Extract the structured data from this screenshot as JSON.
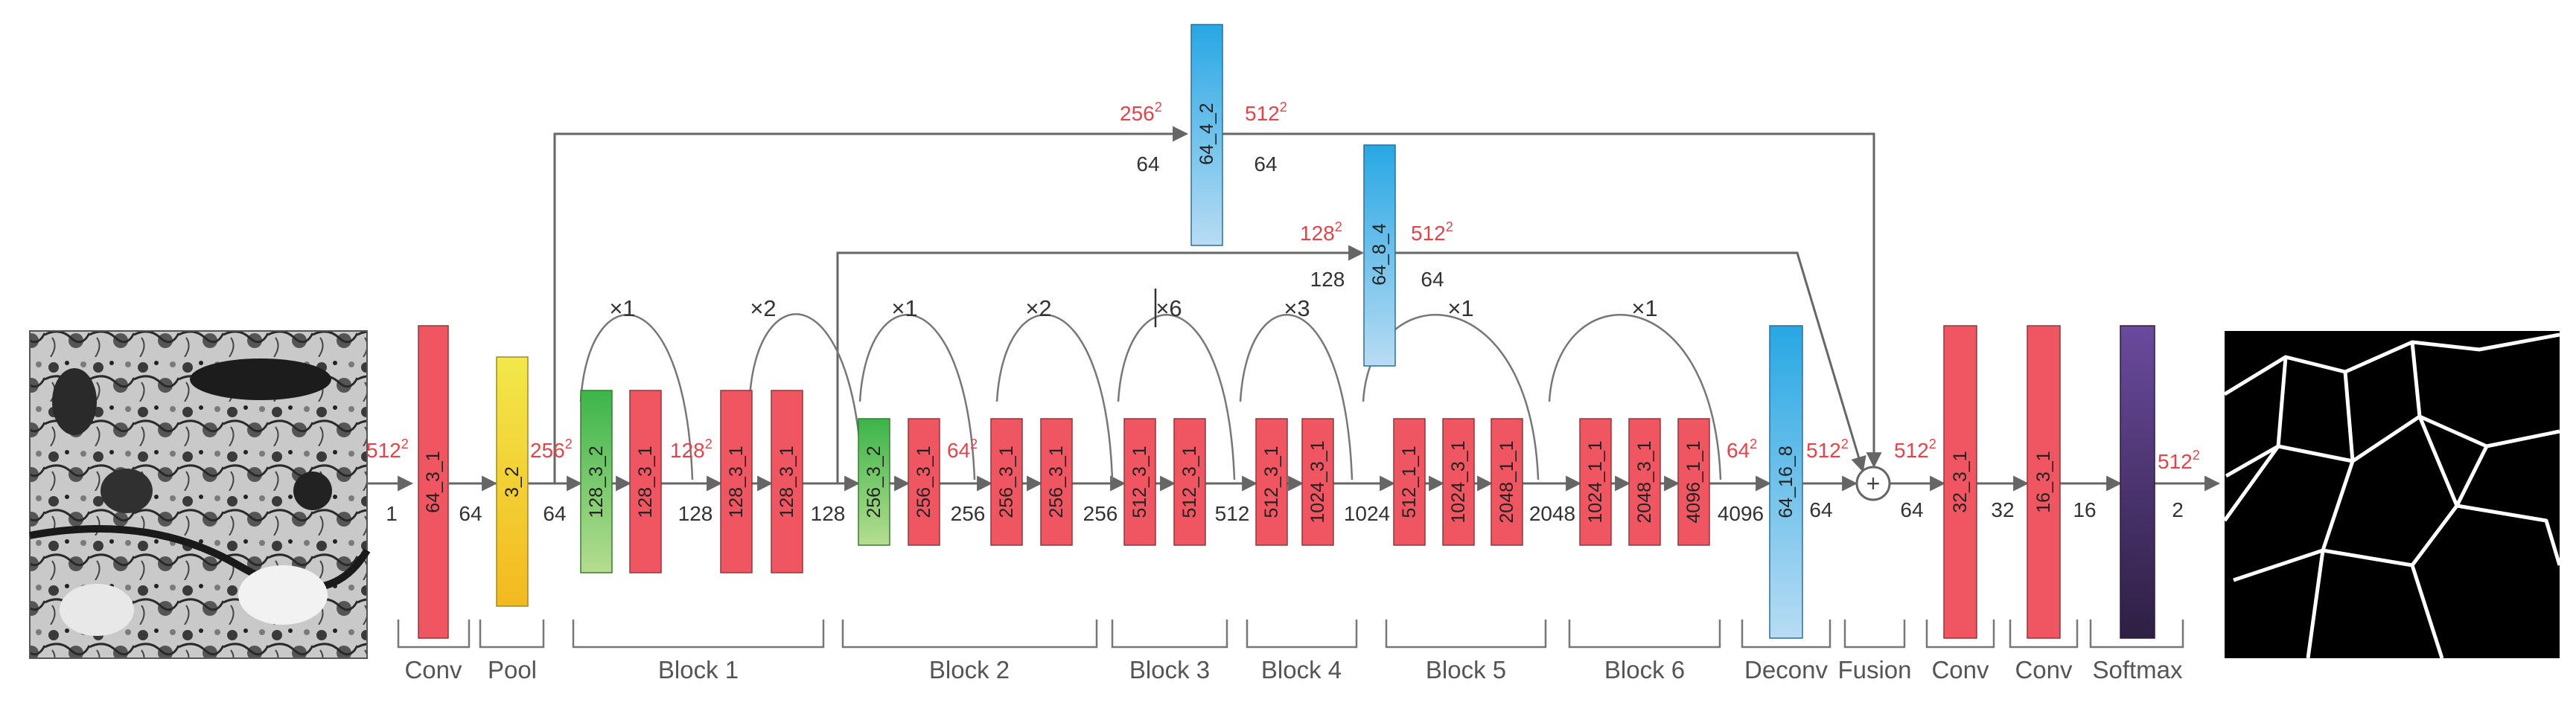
{
  "colors": {
    "red": "#f05661",
    "red_stroke": "#9a3c40",
    "blue_top": "#27a7e4",
    "blue_bottom": "#b8dcf3",
    "green_top": "#3cb54a",
    "green_bottom": "#b5dd8f",
    "yellow_top": "#f2e84a",
    "yellow_bottom": "#f3b91f",
    "purple_top": "#6a4a9d",
    "purple_bottom": "#2e1f43",
    "annotation_red": "#e5434a",
    "line": "#666666"
  },
  "blocks": {
    "conv1": "64_3_1",
    "pool": "3_2",
    "b1_0": "128_3_2",
    "b1_1": "128_3_1",
    "b1_2": "128_3_1",
    "b1_3": "128_3_1",
    "b2_0": "256_3_2",
    "b2_1": "256_3_1",
    "b2_2": "256_3_1",
    "b2_3": "256_3_1",
    "b3_0": "512_3_1",
    "b3_1": "512_3_1",
    "b4_0": "512_3_1",
    "b4_1": "1024_3_1",
    "b5_0": "512_1_1",
    "b5_1": "1024_3_1",
    "b5_2": "2048_1_1",
    "b6_0": "1024_1_1",
    "b6_1": "2048_3_1",
    "b6_2": "4096_1_1",
    "deconv": "64_16_8",
    "side_top": "64_4_2",
    "side_mid": "64_8_4",
    "conv2": "32_3_1",
    "conv3": "16_3_1"
  },
  "channels": {
    "c_1": "1",
    "c_64a": "64",
    "c_64b": "64",
    "c_128a": "128",
    "c_128b": "128",
    "c_256a": "256",
    "c_256b": "256",
    "c_512": "512",
    "c_1024": "1024",
    "c_2048": "2048",
    "c_4096": "4096",
    "c_64c": "64",
    "c_64d": "64",
    "c_32": "32",
    "c_16": "16",
    "c_2": "2",
    "top_in": "64",
    "top_out": "64",
    "mid_in": "128",
    "mid_out": "64"
  },
  "sizes": {
    "input": "512",
    "pool": "256",
    "block1": "128",
    "block2": "64",
    "block6": "64",
    "deconv": "512",
    "fusion": "512",
    "softmax": "512",
    "top_in": "256",
    "top_out": "512",
    "mid_in": "128",
    "mid_out": "512",
    "exponent": "2"
  },
  "repeats": {
    "r1": "×1",
    "r2": "×2",
    "r3": "×1",
    "r4": "×2",
    "r5": "×6",
    "r6": "×3",
    "r7": "×1",
    "r8": "×1"
  },
  "stages": {
    "conv1": "Conv",
    "pool": "Pool",
    "block1": "Block 1",
    "block2": "Block 2",
    "block3": "Block 3",
    "block4": "Block 4",
    "block5": "Block 5",
    "block6": "Block 6",
    "deconv": "Deconv",
    "fusion": "Fusion",
    "conv2": "Conv",
    "conv3": "Conv",
    "softmax": "Softmax"
  },
  "symbols": {
    "sum": "+"
  },
  "images": {
    "input": "electron-microscopy-input-image",
    "output": "boundary-segmentation-output-image"
  }
}
